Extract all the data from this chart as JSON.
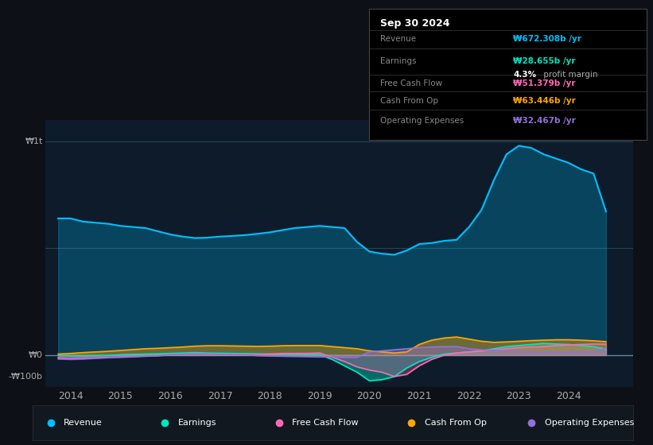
{
  "bg_color": "#0d1117",
  "plot_bg_color": "#0d1b2a",
  "colors": {
    "revenue": "#00bfff",
    "earnings": "#00e5c0",
    "free_cash_flow": "#ff69b4",
    "cash_from_op": "#ffa500",
    "operating_expenses": "#9370db"
  },
  "ylabel_top": "₩1t",
  "ylabel_zero": "₩0",
  "ylabel_bottom": "-₩100b",
  "tooltip_title": "Sep 30 2024",
  "tooltip_rows": [
    {
      "label": "Revenue",
      "value": "₩672.308b /yr",
      "color": "#00bfff",
      "extra": null
    },
    {
      "label": "Earnings",
      "value": "₩28.655b /yr",
      "color": "#00e5c0",
      "extra": "4.3% profit margin"
    },
    {
      "label": "Free Cash Flow",
      "value": "₩51.379b /yr",
      "color": "#ff69b4",
      "extra": null
    },
    {
      "label": "Cash From Op",
      "value": "₩63.446b /yr",
      "color": "#ffa500",
      "extra": null
    },
    {
      "label": "Operating Expenses",
      "value": "₩32.467b /yr",
      "color": "#9370db",
      "extra": null
    }
  ],
  "legend_items": [
    {
      "label": "Revenue",
      "color": "#00bfff"
    },
    {
      "label": "Earnings",
      "color": "#00e5c0"
    },
    {
      "label": "Free Cash Flow",
      "color": "#ff69b4"
    },
    {
      "label": "Cash From Op",
      "color": "#ffa500"
    },
    {
      "label": "Operating Expenses",
      "color": "#9370db"
    }
  ]
}
